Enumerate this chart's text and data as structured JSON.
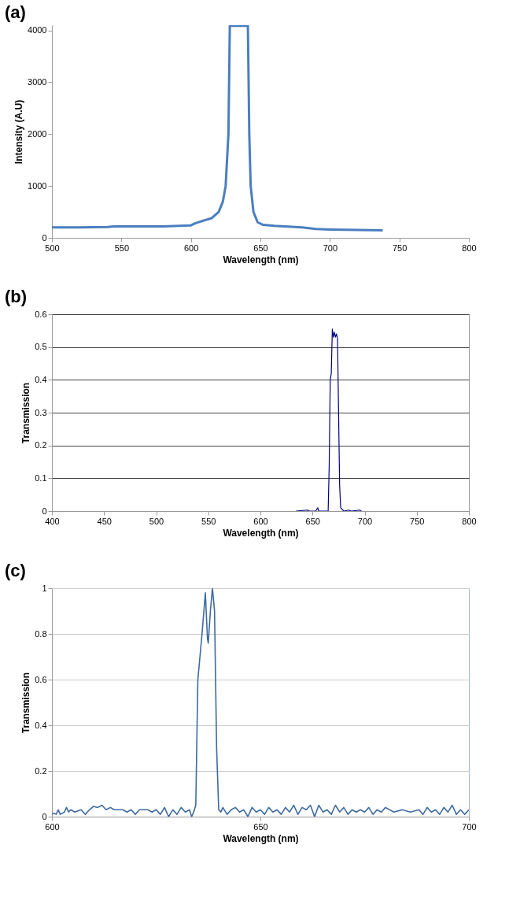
{
  "chart_data": [
    {
      "type": "line",
      "title": "(a)",
      "xlabel": "Wavelength (nm)",
      "ylabel": "Intensity (A.U)",
      "xlim": [
        500,
        800
      ],
      "ylim": [
        0,
        4100
      ],
      "xticks": [
        500,
        550,
        600,
        650,
        700,
        750,
        800
      ],
      "yticks": [
        0,
        1000,
        2000,
        3000,
        4000
      ],
      "grid": false,
      "series": [
        {
          "color": "#4a7ebf",
          "x": [
            500,
            520,
            540,
            545,
            560,
            580,
            600,
            603,
            610,
            615,
            620,
            623,
            625,
            627,
            628,
            641,
            642,
            643,
            645,
            648,
            652,
            660,
            680,
            690,
            700,
            720,
            738
          ],
          "values": [
            200,
            200,
            210,
            220,
            220,
            220,
            240,
            280,
            340,
            380,
            500,
            700,
            1000,
            2000,
            4090,
            4090,
            2000,
            1000,
            500,
            300,
            250,
            230,
            200,
            170,
            160,
            150,
            145
          ]
        }
      ]
    },
    {
      "type": "line",
      "title": "(b)",
      "xlabel": "Wavelength (nm)",
      "ylabel": "Transmission",
      "xlim": [
        400,
        800
      ],
      "ylim": [
        0,
        0.6
      ],
      "xticks": [
        400,
        450,
        500,
        550,
        600,
        650,
        700,
        750,
        800
      ],
      "yticks": [
        0,
        0.1,
        0.2,
        0.3,
        0.4,
        0.5,
        0.6
      ],
      "grid": "y",
      "series": [
        {
          "color": "#000080",
          "x": [
            634,
            645,
            647,
            653,
            655,
            656,
            665,
            666,
            667,
            668,
            669,
            670,
            671,
            672,
            673,
            674,
            675,
            676,
            677,
            680,
            685,
            687,
            695,
            697
          ],
          "values": [
            0,
            0.003,
            0,
            0,
            0.01,
            0,
            0,
            0.14,
            0.4,
            0.42,
            0.555,
            0.53,
            0.545,
            0.53,
            0.54,
            0.525,
            0.3,
            0.08,
            0.01,
            0,
            0.003,
            0,
            0.003,
            0
          ]
        }
      ]
    },
    {
      "type": "line",
      "title": "(c)",
      "xlabel": "Wavelength (nm)",
      "ylabel": "Transmission",
      "xlim": [
        600,
        700
      ],
      "ylim": [
        0,
        1
      ],
      "xticks": [
        600,
        650,
        700
      ],
      "yticks": [
        0,
        0.2,
        0.4,
        0.6,
        0.8,
        1
      ],
      "grid": "y",
      "series": [
        {
          "color": "#3e6aa0",
          "x": [
            600,
            600.5,
            601,
            601.5,
            602,
            603,
            603.5,
            604,
            604.5,
            605.5,
            607,
            608,
            609,
            610,
            611,
            612,
            613,
            614,
            615,
            616,
            617,
            618,
            619,
            620,
            621,
            622,
            623,
            624,
            625,
            626,
            627,
            628,
            629,
            630,
            631,
            632,
            633,
            633.5,
            634,
            634.5,
            635,
            636,
            636.8,
            637.3,
            637.5,
            638,
            638.5,
            639,
            639.5,
            640,
            640.5,
            641,
            642,
            643,
            644,
            645,
            646,
            647,
            648,
            649,
            650,
            651,
            652,
            653,
            654,
            655,
            656,
            657,
            658,
            659,
            660,
            661,
            662,
            663,
            664,
            665,
            666,
            667,
            668,
            669,
            670,
            671,
            672,
            673,
            674,
            675,
            676,
            677,
            678,
            679,
            680,
            682,
            684,
            686,
            688,
            689,
            690,
            691,
            692,
            693,
            694,
            695,
            696,
            697,
            698,
            699,
            700
          ],
          "values": [
            0.01,
            0.015,
            0.01,
            0.03,
            0.01,
            0.02,
            0.04,
            0.02,
            0.03,
            0.02,
            0.03,
            0.01,
            0.03,
            0.045,
            0.04,
            0.05,
            0.03,
            0.04,
            0.03,
            0.03,
            0.03,
            0.02,
            0.03,
            0.01,
            0.03,
            0.03,
            0.03,
            0.02,
            0.03,
            0.01,
            0.04,
            0,
            0.03,
            0.01,
            0.04,
            0.02,
            0.03,
            0,
            0.02,
            0.05,
            0.6,
            0.8,
            0.98,
            0.78,
            0.76,
            0.9,
            1,
            0.9,
            0.3,
            0.03,
            0.02,
            0.04,
            0.01,
            0.03,
            0.04,
            0.02,
            0.03,
            0,
            0.04,
            0.02,
            0.03,
            0.01,
            0.04,
            0.02,
            0.03,
            0.01,
            0.04,
            0.02,
            0.05,
            0.01,
            0.04,
            0.03,
            0.05,
            0,
            0.05,
            0.02,
            0.03,
            0.01,
            0.05,
            0.02,
            0.04,
            0.01,
            0.03,
            0.02,
            0.03,
            0.02,
            0.04,
            0.01,
            0.03,
            0.02,
            0.04,
            0.02,
            0.03,
            0.02,
            0.03,
            0.01,
            0.04,
            0.02,
            0.03,
            0.01,
            0.04,
            0.02,
            0.05,
            0.01,
            0.03,
            0.01,
            0.03
          ]
        }
      ]
    }
  ]
}
